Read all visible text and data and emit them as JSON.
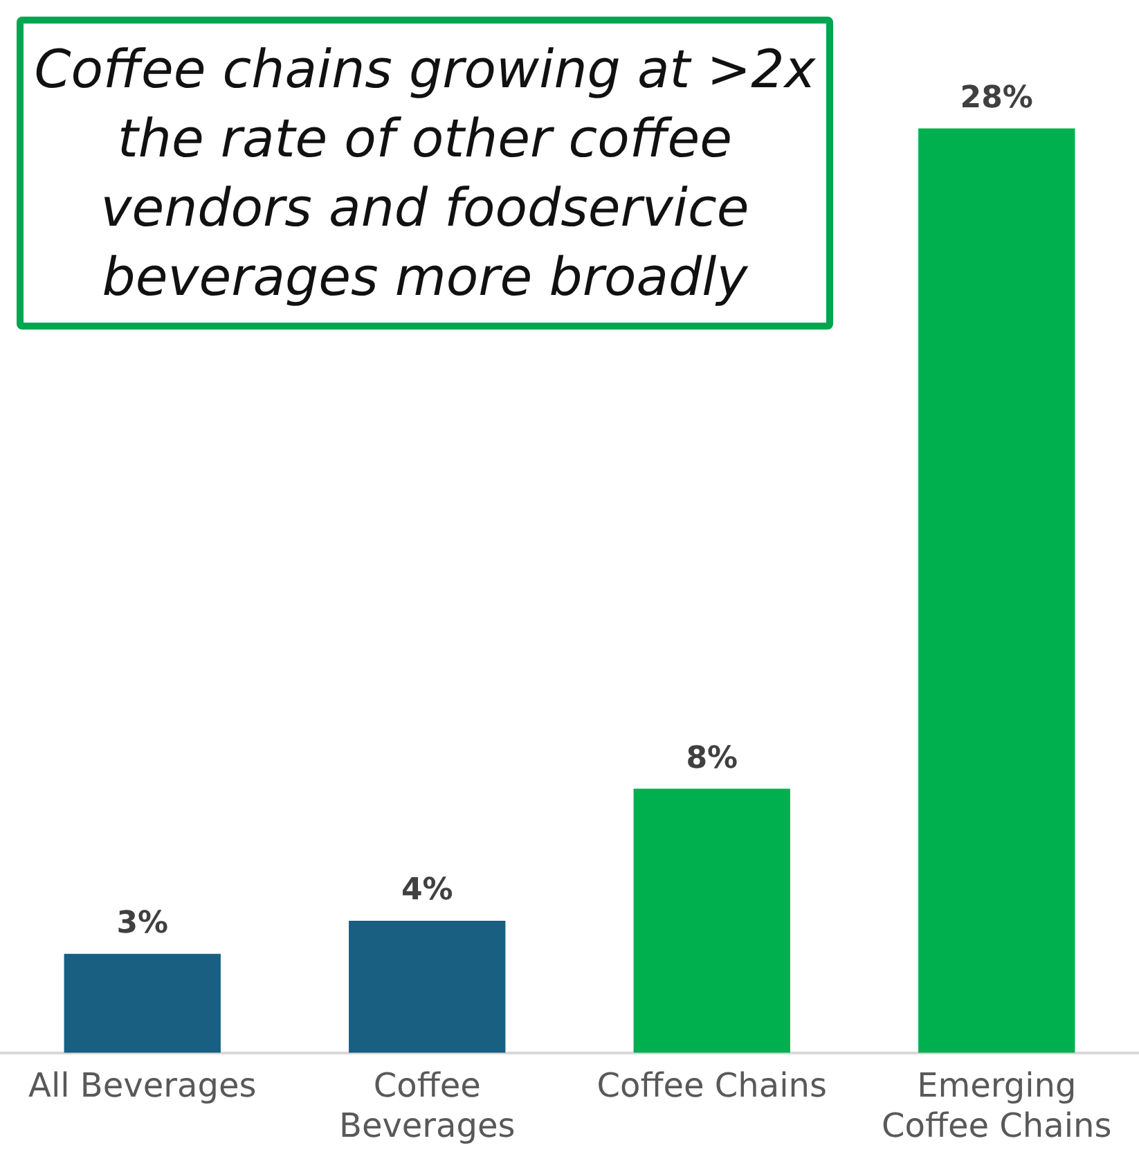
{
  "chart_data": {
    "type": "bar",
    "categories": [
      "All Beverages",
      "Coffee Beverages",
      "Coffee Chains",
      "Emerging Coffee Chains"
    ],
    "values": [
      3,
      4,
      8,
      28
    ],
    "colors": [
      "#185f82",
      "#185f82",
      "#00b04f",
      "#00b04f"
    ],
    "value_labels": [
      "3%",
      "4%",
      "8%",
      "28%"
    ],
    "tick_labels": "x",
    "annotations": [
      "Coffee chains growing at >2x the rate of other coffee vendors and foodservice beverages more broadly"
    ],
    "grid": false,
    "legend": false
  }
}
